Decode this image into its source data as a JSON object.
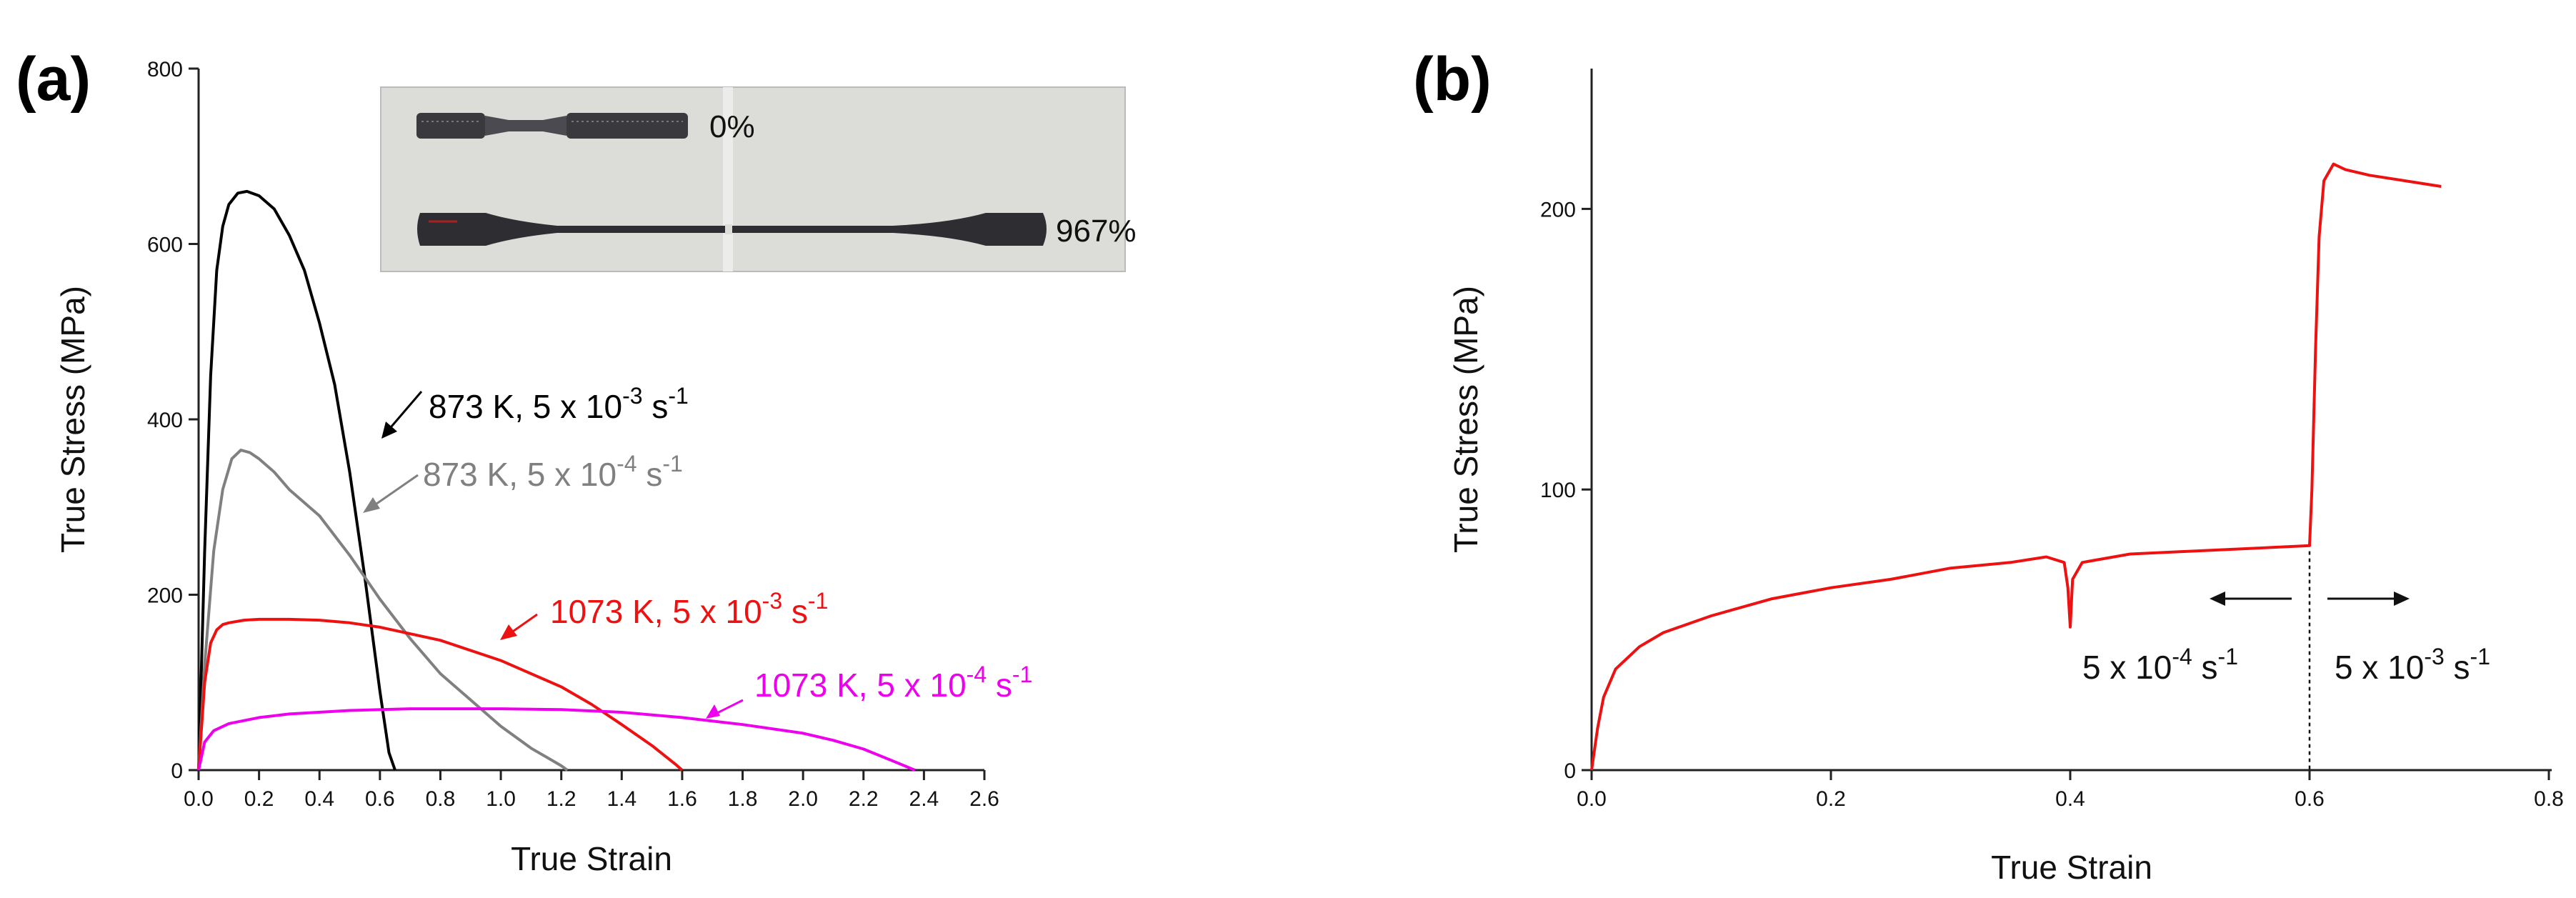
{
  "panels": {
    "a_label": "(a)",
    "b_label": "(b)"
  },
  "inset": {
    "label_top": "0%",
    "label_bottom": "967%"
  },
  "chart_data": [
    {
      "type": "line",
      "panel": "(a)",
      "xlabel": "True Strain",
      "ylabel": "True Stress (MPa)",
      "xlim": [
        0.0,
        2.6
      ],
      "ylim": [
        0,
        800
      ],
      "xticks": [
        "0.0",
        "0.2",
        "0.4",
        "0.6",
        "0.8",
        "1.0",
        "1.2",
        "1.4",
        "1.6",
        "1.8",
        "2.0",
        "2.2",
        "2.4",
        "2.6"
      ],
      "yticks": [
        "0",
        "200",
        "400",
        "600",
        "800"
      ],
      "series": [
        {
          "name": "873 K, 5 x 10-3 s-1",
          "label_main": "873 K, 5 x 10",
          "label_exp1": "-3",
          "label_unit": " s",
          "label_exp2": "-1",
          "color": "#000000",
          "x": [
            0.0,
            0.02,
            0.04,
            0.06,
            0.08,
            0.1,
            0.13,
            0.16,
            0.2,
            0.25,
            0.3,
            0.35,
            0.4,
            0.45,
            0.5,
            0.55,
            0.6,
            0.63,
            0.65
          ],
          "y": [
            0,
            250,
            450,
            570,
            620,
            645,
            658,
            660,
            655,
            640,
            610,
            570,
            510,
            440,
            340,
            220,
            90,
            20,
            0
          ]
        },
        {
          "name": "873 K, 5 x 10-4 s-1",
          "label_main": "873 K, 5 x 10",
          "label_exp1": "-4",
          "label_unit": " s",
          "label_exp2": "-1",
          "color": "#808080",
          "x": [
            0.0,
            0.02,
            0.05,
            0.08,
            0.11,
            0.14,
            0.17,
            0.2,
            0.25,
            0.3,
            0.4,
            0.5,
            0.6,
            0.7,
            0.8,
            0.9,
            1.0,
            1.1,
            1.2,
            1.22
          ],
          "y": [
            0,
            120,
            250,
            320,
            355,
            365,
            362,
            355,
            340,
            320,
            290,
            245,
            195,
            150,
            110,
            80,
            50,
            25,
            5,
            0
          ]
        },
        {
          "name": "1073 K, 5 x 10-3 s-1",
          "label_main": "1073 K, 5 x 10",
          "label_exp1": "-3",
          "label_unit": " s",
          "label_exp2": "-1",
          "color": "#ee1111",
          "x": [
            0.0,
            0.02,
            0.04,
            0.06,
            0.08,
            0.1,
            0.15,
            0.2,
            0.3,
            0.4,
            0.5,
            0.6,
            0.8,
            1.0,
            1.2,
            1.3,
            1.4,
            1.5,
            1.58,
            1.6
          ],
          "y": [
            0,
            100,
            145,
            160,
            166,
            168,
            171,
            172,
            172,
            171,
            168,
            163,
            148,
            125,
            95,
            75,
            52,
            28,
            6,
            0
          ]
        },
        {
          "name": "1073 K, 5 x 10-4 s-1",
          "label_main": "1073 K, 5 x 10",
          "label_exp1": "-4",
          "label_unit": " s",
          "label_exp2": "-1",
          "color": "#ee00ee",
          "x": [
            0.0,
            0.02,
            0.05,
            0.1,
            0.2,
            0.3,
            0.5,
            0.7,
            1.0,
            1.2,
            1.4,
            1.6,
            1.8,
            2.0,
            2.1,
            2.2,
            2.3,
            2.37
          ],
          "y": [
            0,
            32,
            45,
            53,
            60,
            64,
            68,
            70,
            70,
            69,
            66,
            60,
            52,
            42,
            34,
            24,
            10,
            0
          ]
        }
      ]
    },
    {
      "type": "line",
      "panel": "(b)",
      "xlabel": "True Strain",
      "ylabel": "True Stress (MPa)",
      "xlim": [
        0.0,
        0.8
      ],
      "ylim": [
        0,
        250
      ],
      "xticks": [
        "0.0",
        "0.2",
        "0.4",
        "0.6",
        "0.8"
      ],
      "yticks": [
        "0",
        "100",
        "200"
      ],
      "divider_x": 0.6,
      "left_label": {
        "main": "5 x 10",
        "exp1": "-4",
        "unit": " s",
        "exp2": "-1"
      },
      "right_label": {
        "main": "5 x 10",
        "exp1": "-3",
        "unit": " s",
        "exp2": "-1"
      },
      "series": [
        {
          "name": "strain-rate jump",
          "color": "#ee1111",
          "x": [
            0.0,
            0.005,
            0.01,
            0.02,
            0.04,
            0.06,
            0.1,
            0.15,
            0.2,
            0.25,
            0.3,
            0.35,
            0.38,
            0.395,
            0.398,
            0.4,
            0.402,
            0.41,
            0.45,
            0.5,
            0.55,
            0.6,
            0.602,
            0.605,
            0.608,
            0.612,
            0.62,
            0.63,
            0.65,
            0.68,
            0.71
          ],
          "y": [
            0,
            15,
            26,
            36,
            44,
            49,
            55,
            61,
            65,
            68,
            72,
            74,
            76,
            74,
            65,
            51,
            68,
            74,
            77,
            78,
            79,
            80,
            100,
            150,
            190,
            210,
            216,
            214,
            212,
            210,
            208
          ]
        }
      ]
    }
  ]
}
